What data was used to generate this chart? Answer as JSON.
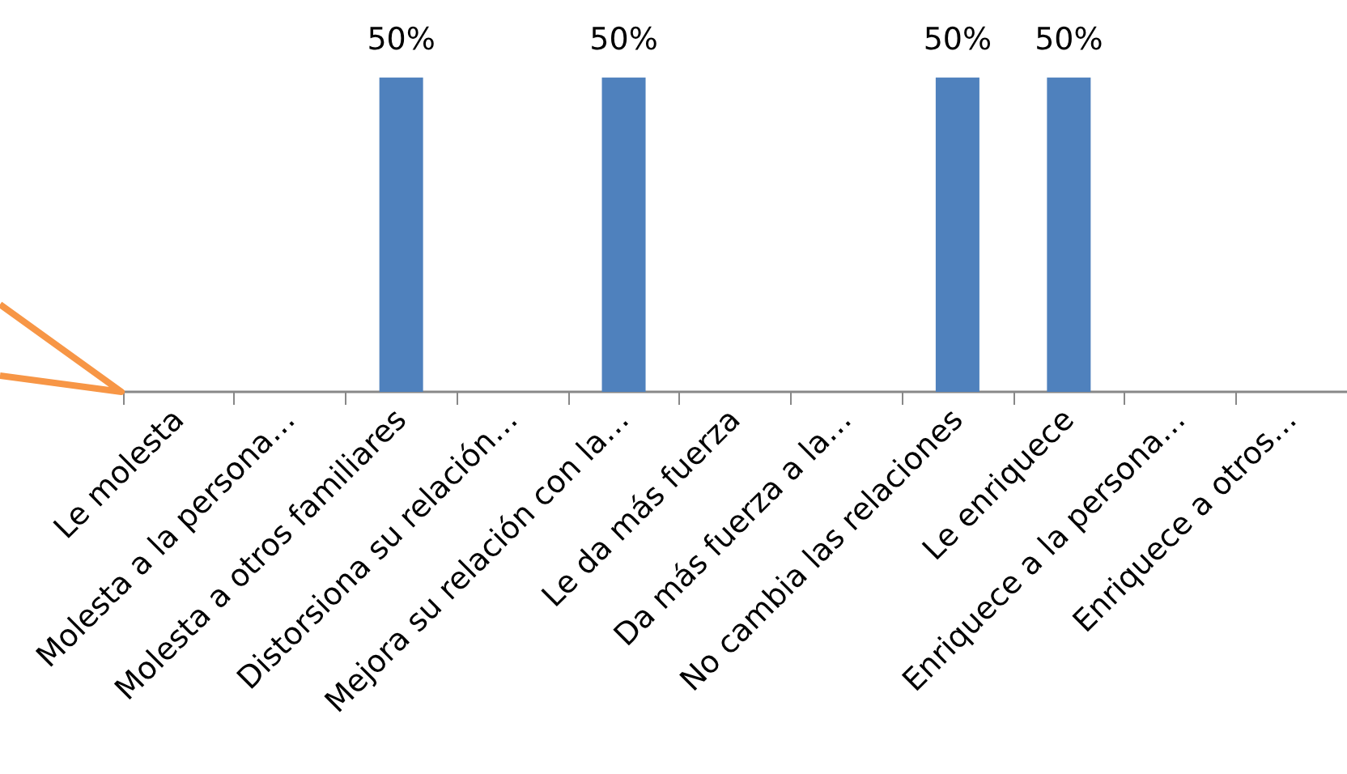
{
  "chart_data": {
    "type": "bar",
    "categories": [
      "Le molesta",
      "Molesta a la persona…",
      "Molesta a otros familiares",
      "Distorsiona su relación…",
      "Mejora su relación con la…",
      "Le da más fuerza",
      "Da más fuerza a la…",
      "No cambia las relaciones",
      "Le enriquece",
      "Enriquece a la persona…",
      "Enriquece a otros…"
    ],
    "values": [
      0,
      0,
      50,
      0,
      50,
      0,
      0,
      50,
      50,
      0,
      0
    ],
    "value_labels": [
      null,
      null,
      "50%",
      null,
      "50%",
      null,
      null,
      "50%",
      "50%",
      null,
      null
    ],
    "color": "#4f81bd"
  }
}
